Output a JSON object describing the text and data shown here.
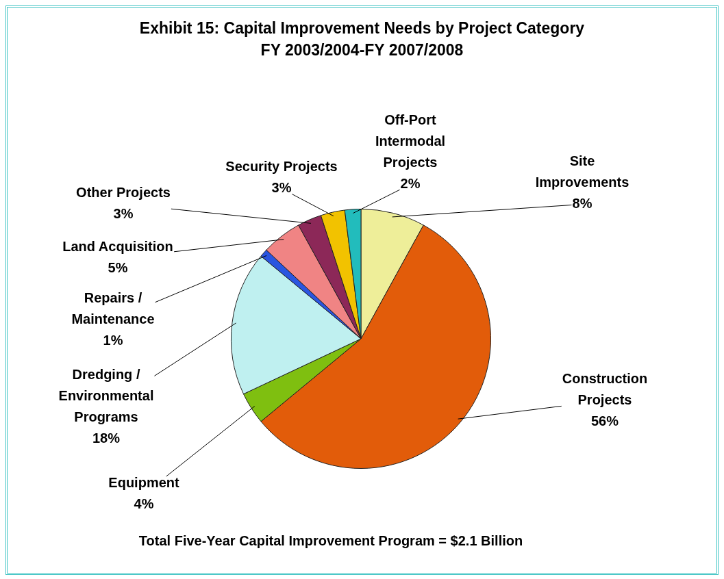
{
  "chart_data": {
    "type": "pie",
    "title": "Exhibit 15: Capital Improvement Needs by Project Category",
    "subtitle": "FY 2003/2004-FY 2007/2008",
    "categories": [
      "Site Improvements",
      "Construction Projects",
      "Equipment",
      "Dredging / Environmental Programs",
      "Repairs / Maintenance",
      "Land Acquisition",
      "Other Projects",
      "Security Projects",
      "Off-Port Intermodal Projects"
    ],
    "values": [
      8,
      56,
      4,
      18,
      1,
      5,
      3,
      3,
      2
    ],
    "value_labels": [
      "8%",
      "56%",
      "4%",
      "18%",
      "1%",
      "5%",
      "3%",
      "3%",
      "2%"
    ],
    "colors": [
      "#eeee99",
      "#e25c0a",
      "#7fbf10",
      "#bff0f0",
      "#2a55e0",
      "#f08484",
      "#8c2858",
      "#f2c200",
      "#22bcbc"
    ],
    "annotations": [
      "Total Five-Year Capital Improvement Program = $2.1 Billion"
    ],
    "legend": false
  }
}
